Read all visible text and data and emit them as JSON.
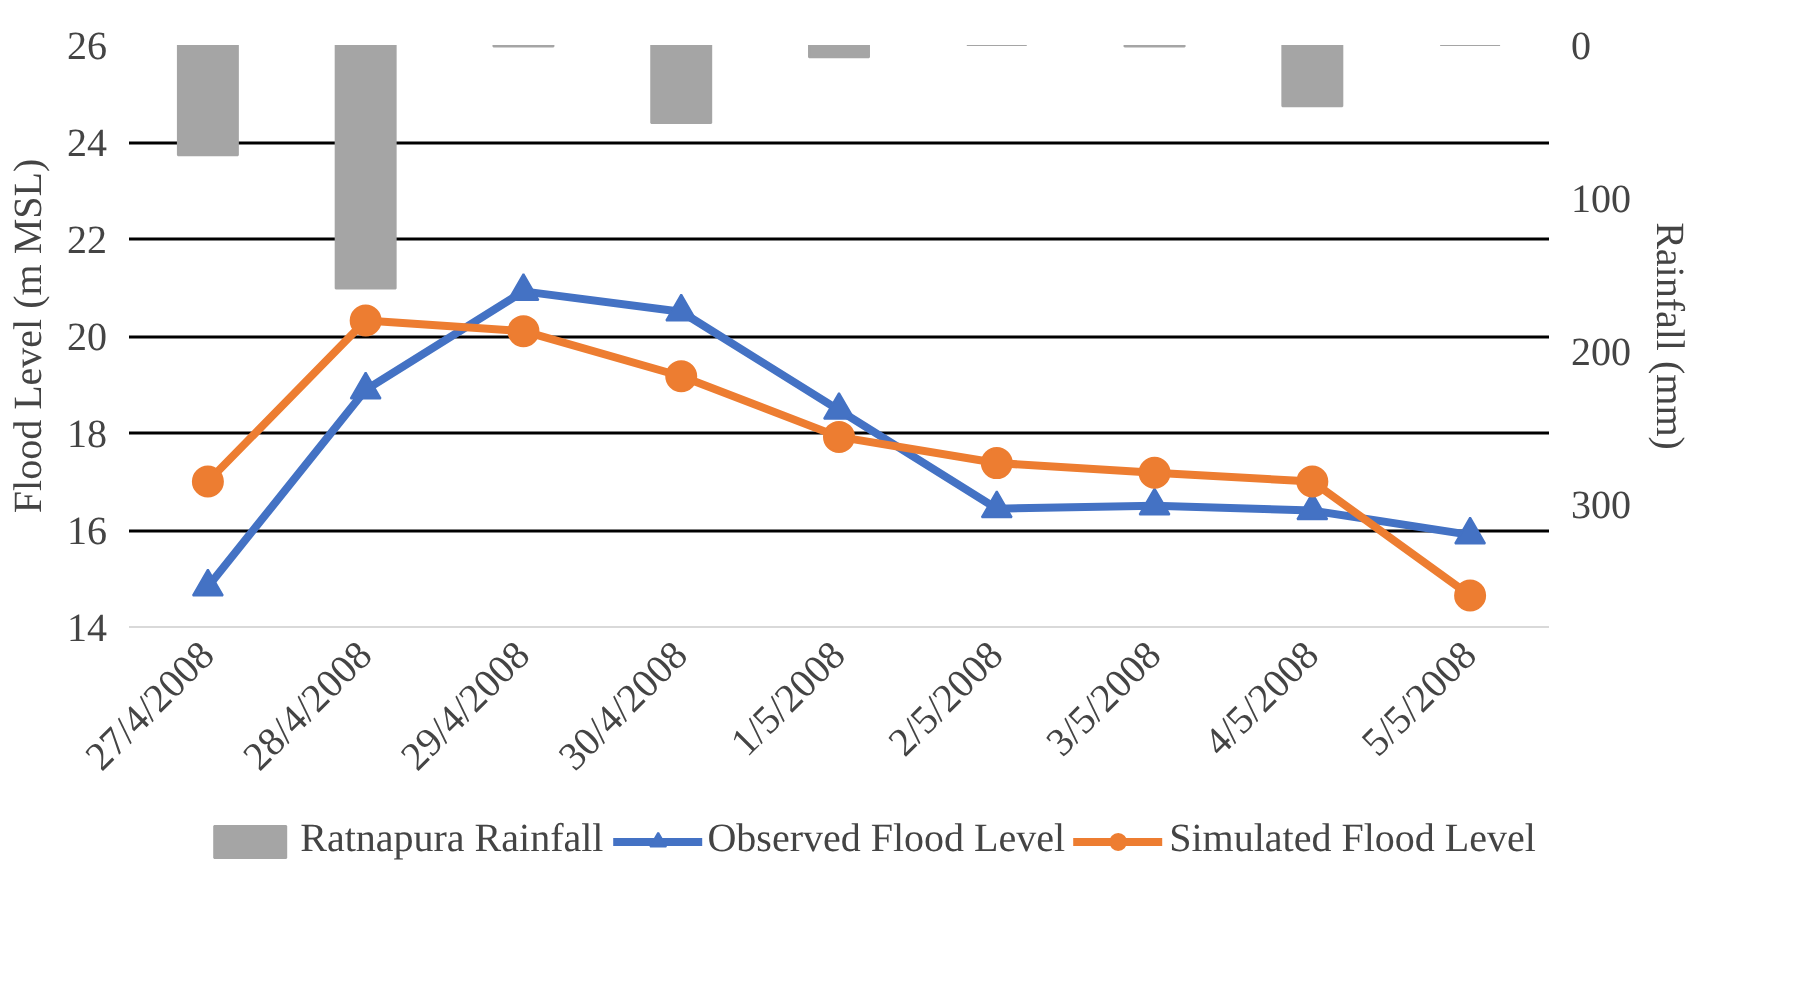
{
  "chart_data": {
    "type": "line",
    "categories": [
      "27/4/2008",
      "28/4/2008",
      "29/4/2008",
      "30/4/2008",
      "1/5/2008",
      "2/5/2008",
      "3/5/2008",
      "4/5/2008",
      "5/5/2008"
    ],
    "ylabel": "Flood Level (m MSL)",
    "y2label": "Rainfall (mm)",
    "ylim": [
      14,
      26
    ],
    "yticks": [
      14,
      16,
      18,
      20,
      22,
      24,
      26
    ],
    "y2lim": [
      380,
      0
    ],
    "y2ticks": [
      0,
      100,
      200,
      300
    ],
    "grid": "y",
    "legend": "bottom",
    "line_style": "solid",
    "series": [
      {
        "name": "Ratnapura Rainfall",
        "type": "bar",
        "axis": "y2",
        "color": "#a5a5a5",
        "values": [
          72,
          159,
          1,
          51,
          8,
          0,
          1,
          40,
          0
        ]
      },
      {
        "name": "Observed Flood Level",
        "marker": "triangle",
        "color": "#4472c4",
        "values": [
          14.83,
          18.89,
          20.92,
          20.5,
          18.47,
          16.44,
          16.5,
          16.4,
          15.9
        ]
      },
      {
        "name": "Simulated Flood Level",
        "marker": "circle",
        "color": "#ed7d31",
        "values": [
          17.0,
          20.32,
          20.1,
          19.17,
          17.92,
          17.38,
          17.18,
          17.0,
          14.65
        ]
      }
    ]
  }
}
